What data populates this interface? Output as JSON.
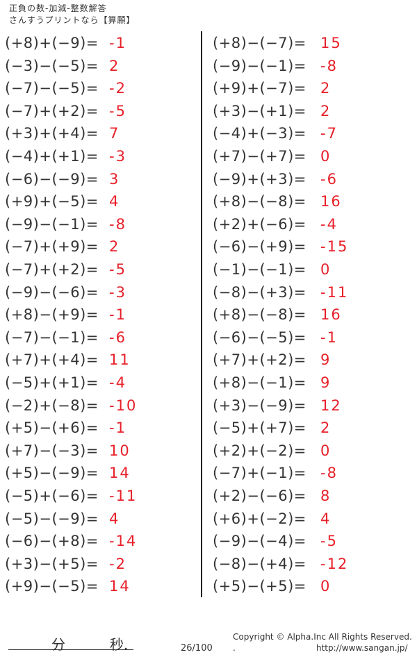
{
  "header": {
    "title": "正負の数-加減-整数解答",
    "subtitle": "さんすうプリントなら【算願】"
  },
  "left": [
    {
      "q": "(+8)+(−9)=",
      "a": "-1"
    },
    {
      "q": "(−3)−(−5)=",
      "a": "2"
    },
    {
      "q": "(−7)−(−5)=",
      "a": "-2"
    },
    {
      "q": "(−7)+(+2)=",
      "a": "-5"
    },
    {
      "q": "(+3)+(+4)=",
      "a": "7"
    },
    {
      "q": "(−4)+(+1)=",
      "a": "-3"
    },
    {
      "q": "(−6)−(−9)=",
      "a": "3"
    },
    {
      "q": "(+9)+(−5)=",
      "a": "4"
    },
    {
      "q": "(−9)−(−1)=",
      "a": "-8"
    },
    {
      "q": "(−7)+(+9)=",
      "a": "2"
    },
    {
      "q": "(−7)+(+2)=",
      "a": "-5"
    },
    {
      "q": "(−9)−(−6)=",
      "a": "-3"
    },
    {
      "q": "(+8)−(+9)=",
      "a": "-1"
    },
    {
      "q": "(−7)−(−1)=",
      "a": "-6"
    },
    {
      "q": "(+7)+(+4)=",
      "a": "11"
    },
    {
      "q": "(−5)+(+1)=",
      "a": "-4"
    },
    {
      "q": "(−2)+(−8)=",
      "a": "-10"
    },
    {
      "q": "(+5)−(+6)=",
      "a": "-1"
    },
    {
      "q": "(+7)−(−3)=",
      "a": "10"
    },
    {
      "q": "(+5)−(−9)=",
      "a": "14"
    },
    {
      "q": "(−5)+(−6)=",
      "a": "-11"
    },
    {
      "q": "(−5)−(−9)=",
      "a": "4"
    },
    {
      "q": "(−6)−(+8)=",
      "a": "-14"
    },
    {
      "q": "(+3)−(+5)=",
      "a": "-2"
    },
    {
      "q": "(+9)−(−5)=",
      "a": "14"
    }
  ],
  "right": [
    {
      "q": "(+8)−(−7)=",
      "a": "15"
    },
    {
      "q": "(−9)−(−1)=",
      "a": "-8"
    },
    {
      "q": "(+9)+(−7)=",
      "a": "2"
    },
    {
      "q": "(+3)−(+1)=",
      "a": "2"
    },
    {
      "q": "(−4)+(−3)=",
      "a": "-7"
    },
    {
      "q": "(+7)−(+7)=",
      "a": "0"
    },
    {
      "q": "(−9)+(+3)=",
      "a": "-6"
    },
    {
      "q": "(+8)−(−8)=",
      "a": "16"
    },
    {
      "q": "(+2)+(−6)=",
      "a": "-4"
    },
    {
      "q": "(−6)−(+9)=",
      "a": "-15"
    },
    {
      "q": "(−1)−(−1)=",
      "a": "0"
    },
    {
      "q": "(−8)−(+3)=",
      "a": "-11"
    },
    {
      "q": "(+8)−(−8)=",
      "a": "16"
    },
    {
      "q": "(−6)−(−5)=",
      "a": "-1"
    },
    {
      "q": "(+7)+(+2)=",
      "a": "9"
    },
    {
      "q": "(+8)−(−1)=",
      "a": "9"
    },
    {
      "q": "(+3)−(−9)=",
      "a": "12"
    },
    {
      "q": "(−5)+(+7)=",
      "a": "2"
    },
    {
      "q": "(+2)+(−2)=",
      "a": "0"
    },
    {
      "q": "(−7)+(−1)=",
      "a": "-8"
    },
    {
      "q": "(+2)−(−6)=",
      "a": "8"
    },
    {
      "q": "(+6)+(−2)=",
      "a": "4"
    },
    {
      "q": "(−9)−(−4)=",
      "a": "-5"
    },
    {
      "q": "(−8)−(+4)=",
      "a": "-12"
    },
    {
      "q": "(+5)−(+5)=",
      "a": "0"
    }
  ],
  "footer": {
    "minutes": "分",
    "seconds": "秒.",
    "page": "26/100",
    "copyright": "Copyright ©  Alpha.Inc All Rights Reserved.",
    "dot": ".",
    "url": "http://www.sangan.jp/"
  },
  "colors": {
    "answer": "#e8202a",
    "text": "#333333"
  }
}
